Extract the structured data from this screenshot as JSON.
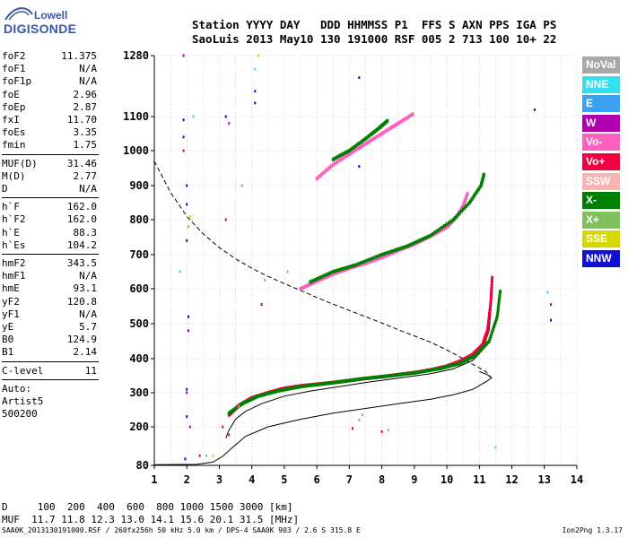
{
  "logo": {
    "line1": "Lowell",
    "line2": "DIGISONDE",
    "color": "#3a56a8"
  },
  "header": {
    "labels": "Station YYYY DAY   DDD HHMMSS P1  FFS S AXN PPS IGA PS",
    "values": "SaoLuis 2013 May10 130 191000 RSF 005 2 713 100 10+ 22"
  },
  "params": {
    "group1": [
      {
        "label": "foF2",
        "value": "11.375"
      },
      {
        "label": "foF1",
        "value": "N/A"
      },
      {
        "label": "foF1p",
        "value": "N/A"
      },
      {
        "label": "foE",
        "value": "2.96"
      },
      {
        "label": "foEp",
        "value": "2.87"
      },
      {
        "label": "fxI",
        "value": "11.70"
      },
      {
        "label": "foEs",
        "value": "3.35"
      },
      {
        "label": "fmin",
        "value": "1.75"
      }
    ],
    "group2": [
      {
        "label": "MUF(D)",
        "value": "31.46"
      },
      {
        "label": "M(D)",
        "value": "2.77"
      },
      {
        "label": "D",
        "value": "N/A"
      }
    ],
    "group3": [
      {
        "label": "h`F",
        "value": "162.0"
      },
      {
        "label": "h`F2",
        "value": "162.0"
      },
      {
        "label": "h`E",
        "value": "88.3"
      },
      {
        "label": "h`Es",
        "value": "104.2"
      }
    ],
    "group4": [
      {
        "label": "hmF2",
        "value": "343.5"
      },
      {
        "label": "hmF1",
        "value": "N/A"
      },
      {
        "label": "hmE",
        "value": "93.1"
      },
      {
        "label": "yF2",
        "value": "120.8"
      },
      {
        "label": "yF1",
        "value": "N/A"
      },
      {
        "label": "yE",
        "value": "5.7"
      },
      {
        "label": "B0",
        "value": "124.9"
      },
      {
        "label": "B1",
        "value": "2.14"
      }
    ],
    "clevel": {
      "label": "C-level",
      "value": "11"
    },
    "auto": [
      "Auto:",
      "Artist5",
      "500200"
    ]
  },
  "legend": [
    {
      "label": "NoVal",
      "color": "#a8a8a8"
    },
    {
      "label": "NNE",
      "color": "#33e0f0"
    },
    {
      "label": "E",
      "color": "#3aa0f0"
    },
    {
      "label": "W",
      "color": "#b000b0"
    },
    {
      "label": "Vo-",
      "color": "#ff5fbf"
    },
    {
      "label": "Vo+",
      "color": "#f00040"
    },
    {
      "label": "SSW",
      "color": "#f8b4b0"
    },
    {
      "label": "X-",
      "color": "#008000"
    },
    {
      "label": "X+",
      "color": "#80c060"
    },
    {
      "label": "SSE",
      "color": "#d8d800"
    },
    {
      "label": "NNW",
      "color": "#1010d0"
    }
  ],
  "bottom": {
    "d_row": "D     100  200  400  600  800 1000 1500 3000 [km]",
    "muf_row": "MUF  11.7 11.8 12.3 13.0 14.1 15.6 20.1 31.5 [MHz]"
  },
  "footer": {
    "left": "SAA0K_2013130191000.RSF / 260fx256h 50 kHz 5.0 km / DPS-4 SAA0K 903 / 2.6 S 315.8 E",
    "right": "Ion2Png 1.3.17"
  },
  "chart_data": {
    "type": "scatter",
    "x_ticks": [
      "1",
      "2",
      "3",
      "4",
      "5",
      "6",
      "7",
      "8",
      "9",
      "10",
      "11",
      "12",
      "13",
      "14"
    ],
    "y_ticks": [
      "80",
      "200",
      "300",
      "400",
      "500",
      "600",
      "700",
      "800",
      "900",
      "1000",
      "1100",
      "1280"
    ],
    "xlim": [
      1,
      14
    ],
    "ylim": [
      80,
      1280
    ],
    "grid": true,
    "series": [
      {
        "kind": "trace",
        "color": "#f00040",
        "points": [
          [
            3.3,
            235
          ],
          [
            3.6,
            262
          ],
          [
            4.0,
            285
          ],
          [
            4.5,
            300
          ],
          [
            5.0,
            313
          ],
          [
            5.5,
            320
          ],
          [
            6.0,
            325
          ],
          [
            6.5,
            330
          ],
          [
            7.0,
            336
          ],
          [
            7.5,
            342
          ],
          [
            8.0,
            347
          ],
          [
            8.5,
            353
          ],
          [
            9.0,
            359
          ],
          [
            9.5,
            367
          ],
          [
            10.0,
            378
          ],
          [
            10.4,
            392
          ],
          [
            10.8,
            412
          ],
          [
            11.1,
            440
          ],
          [
            11.25,
            480
          ],
          [
            11.35,
            560
          ],
          [
            11.4,
            640
          ]
        ]
      },
      {
        "kind": "trace",
        "color": "#008000",
        "points": [
          [
            3.3,
            240
          ],
          [
            3.7,
            268
          ],
          [
            4.2,
            290
          ],
          [
            4.8,
            305
          ],
          [
            5.5,
            318
          ],
          [
            6.2,
            326
          ],
          [
            6.8,
            333
          ],
          [
            7.4,
            341
          ],
          [
            8.2,
            349
          ],
          [
            9.0,
            358
          ],
          [
            9.8,
            371
          ],
          [
            10.4,
            386
          ],
          [
            10.9,
            410
          ],
          [
            11.3,
            450
          ],
          [
            11.55,
            520
          ],
          [
            11.65,
            600
          ]
        ]
      },
      {
        "kind": "trace",
        "color": "#ff5fbf",
        "points": [
          [
            5.5,
            600
          ],
          [
            6.0,
            622
          ],
          [
            6.5,
            643
          ],
          [
            7.0,
            660
          ],
          [
            7.5,
            675
          ],
          [
            8.0,
            692
          ],
          [
            8.5,
            712
          ],
          [
            9.0,
            730
          ],
          [
            9.5,
            753
          ],
          [
            10.0,
            778
          ],
          [
            10.3,
            808
          ],
          [
            10.5,
            840
          ],
          [
            10.65,
            880
          ]
        ]
      },
      {
        "kind": "trace",
        "color": "#008000",
        "points": [
          [
            5.8,
            620
          ],
          [
            6.5,
            650
          ],
          [
            7.2,
            670
          ],
          [
            8.0,
            700
          ],
          [
            8.8,
            725
          ],
          [
            9.5,
            755
          ],
          [
            10.2,
            800
          ],
          [
            10.7,
            850
          ],
          [
            11.05,
            900
          ],
          [
            11.15,
            935
          ]
        ]
      },
      {
        "kind": "trace",
        "color": "#ff5fbf",
        "points": [
          [
            6.0,
            920
          ],
          [
            6.5,
            960
          ],
          [
            7.0,
            990
          ],
          [
            7.5,
            1020
          ],
          [
            8.0,
            1050
          ],
          [
            8.5,
            1080
          ],
          [
            9.0,
            1110
          ]
        ]
      },
      {
        "kind": "trace",
        "color": "#008000",
        "points": [
          [
            6.5,
            975
          ],
          [
            7.0,
            1000
          ],
          [
            7.5,
            1035
          ],
          [
            7.9,
            1065
          ],
          [
            8.2,
            1090
          ]
        ]
      },
      {
        "kind": "scatter",
        "color": "#1010d0",
        "points": [
          [
            1.9,
            1090
          ],
          [
            1.9,
            1040
          ],
          [
            2.0,
            900
          ],
          [
            2.0,
            845
          ],
          [
            2.0,
            740
          ],
          [
            2.05,
            520
          ],
          [
            2.0,
            310
          ],
          [
            2.0,
            230
          ],
          [
            1.95,
            100
          ],
          [
            3.2,
            1100
          ],
          [
            4.1,
            1140
          ],
          [
            4.1,
            1175
          ],
          [
            7.3,
            1215
          ],
          [
            7.3,
            955
          ],
          [
            12.7,
            1120
          ],
          [
            13.2,
            510
          ]
        ]
      },
      {
        "kind": "scatter",
        "color": "#b000b0",
        "points": [
          [
            1.9,
            1280
          ],
          [
            2.0,
            300
          ],
          [
            2.05,
            480
          ],
          [
            3.3,
            1080
          ],
          [
            4.3,
            555
          ],
          [
            3.2,
            800
          ],
          [
            13.2,
            555
          ],
          [
            2.1,
            200
          ],
          [
            2.4,
            110
          ]
        ]
      },
      {
        "kind": "scatter",
        "color": "#33e0f0",
        "points": [
          [
            2.2,
            1100
          ],
          [
            13.1,
            590
          ],
          [
            11.5,
            135
          ],
          [
            4.1,
            1240
          ],
          [
            1.8,
            650
          ],
          [
            2.6,
            110
          ]
        ]
      },
      {
        "kind": "scatter",
        "color": "#80c060",
        "points": [
          [
            2.05,
            780
          ],
          [
            3.6,
            260
          ],
          [
            3.7,
            900
          ],
          [
            5.1,
            650
          ],
          [
            7.4,
            235
          ],
          [
            7.3,
            220
          ],
          [
            4.4,
            625
          ],
          [
            8.2,
            190
          ]
        ]
      },
      {
        "kind": "scatter",
        "color": "#f00040",
        "points": [
          [
            1.9,
            1000
          ],
          [
            3.55,
            260
          ],
          [
            3.1,
            200
          ],
          [
            3.3,
            175
          ],
          [
            7.1,
            195
          ],
          [
            8.0,
            185
          ]
        ]
      },
      {
        "kind": "scatter",
        "color": "#d8d800",
        "points": [
          [
            2.1,
            810
          ],
          [
            4.2,
            1280
          ],
          [
            2.8,
            110
          ]
        ]
      }
    ],
    "lines": [
      {
        "name": "",
        "style": "solid",
        "points": [
          [
            1.0,
            82
          ],
          [
            2.3,
            83
          ],
          [
            2.8,
            90
          ],
          [
            3.1,
            108
          ],
          [
            3.4,
            135
          ],
          [
            3.8,
            170
          ],
          [
            4.5,
            200
          ],
          [
            5.5,
            222
          ],
          [
            6.5,
            240
          ],
          [
            7.5,
            254
          ],
          [
            8.5,
            268
          ],
          [
            9.5,
            281
          ],
          [
            10.2,
            294
          ],
          [
            10.8,
            310
          ],
          [
            11.2,
            332
          ],
          [
            11.375,
            343.5
          ],
          [
            11.25,
            353
          ],
          [
            11.0,
            362
          ]
        ]
      },
      {
        "name": "",
        "style": "dashed",
        "points": [
          [
            1.0,
            970
          ],
          [
            1.5,
            880
          ],
          [
            2.0,
            810
          ],
          [
            2.5,
            760
          ],
          [
            3.0,
            720
          ],
          [
            3.5,
            688
          ],
          [
            4.0,
            660
          ],
          [
            4.5,
            636
          ],
          [
            5.0,
            615
          ],
          [
            5.5,
            595
          ],
          [
            6.0,
            575
          ],
          [
            6.5,
            556
          ],
          [
            7.0,
            538
          ],
          [
            7.5,
            520
          ],
          [
            8.0,
            502
          ],
          [
            8.5,
            483
          ],
          [
            9.0,
            465
          ],
          [
            9.5,
            447
          ],
          [
            10.0,
            425
          ],
          [
            10.5,
            400
          ],
          [
            10.9,
            378
          ],
          [
            11.2,
            362
          ],
          [
            11.375,
            343.5
          ]
        ]
      },
      {
        "name": "",
        "style": "solid",
        "points": [
          [
            3.2,
            165
          ],
          [
            3.3,
            190
          ],
          [
            3.5,
            222
          ],
          [
            3.8,
            245
          ],
          [
            4.3,
            268
          ],
          [
            5.0,
            290
          ],
          [
            5.8,
            305
          ],
          [
            6.5,
            315
          ],
          [
            7.5,
            330
          ],
          [
            8.5,
            343
          ],
          [
            9.5,
            356
          ],
          [
            10.2,
            370
          ],
          [
            10.8,
            395
          ],
          [
            11.1,
            425
          ],
          [
            11.3,
            480
          ],
          [
            11.375,
            560
          ],
          [
            11.375,
            620
          ]
        ]
      }
    ]
  }
}
